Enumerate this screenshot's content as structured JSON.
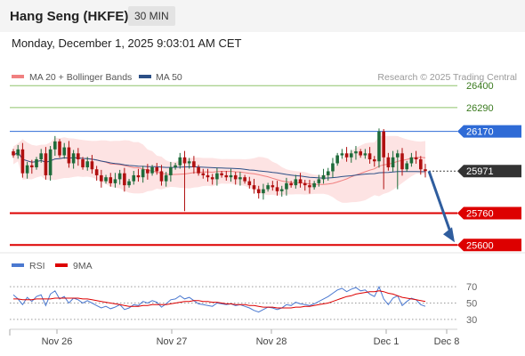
{
  "header": {
    "title": "Hang Seng (HKFE)",
    "timeframe": "30 MIN",
    "datetime": "Monday, December 1, 2025 9:03:01 AM CET"
  },
  "colors": {
    "bollinger": "#f08080",
    "band_fill": "#fde3e3",
    "ma50": "#2c4f86",
    "resistance_green": "#8fc46a",
    "level_blue": "#2f6bd6",
    "support_red": "#dd0000",
    "arrow": "#2f5d9e",
    "bull": "#1e6b3a",
    "bear": "#b01010",
    "rsi": "#4a78d0",
    "rsi_ma": "#dd0000"
  },
  "chart_data": [
    {
      "type": "candlestick",
      "legend": [
        {
          "name": "MA 20 + Bollinger Bands",
          "color": "#f08080"
        },
        {
          "name": "MA 50",
          "color": "#2c4f86"
        }
      ],
      "legend_placement": "top-left",
      "watermark": "Research © 2025 Trading Central",
      "ylim": [
        25570,
        26450
      ],
      "levels": [
        {
          "value": 26400,
          "label": "26400",
          "kind": "resistance-green"
        },
        {
          "value": 26290,
          "label": "26290",
          "kind": "resistance-green"
        },
        {
          "value": 26170,
          "label": "26170",
          "kind": "pivot-blue"
        },
        {
          "value": 25971,
          "label": "25971",
          "kind": "last-price"
        },
        {
          "value": 25760,
          "label": "25760",
          "kind": "support-red"
        },
        {
          "value": 25600,
          "label": "25600",
          "kind": "support-red"
        }
      ],
      "x_ticks": [
        "Nov 26",
        "Nov 27",
        "Nov 28",
        "Dec 1",
        "Dec 8"
      ],
      "last_price": 25971,
      "forecast_target": 25600,
      "close_path": [
        26050,
        26080,
        25960,
        26000,
        25990,
        26030,
        26060,
        25950,
        26080,
        26120,
        26050,
        26090,
        26010,
        26060,
        26030,
        25990,
        26020,
        25980,
        25950,
        25920,
        25940,
        25910,
        25930,
        25960,
        25900,
        25920,
        25950,
        25940,
        25980,
        25960,
        25990,
        25970,
        25920,
        25950,
        25990,
        26000,
        26040,
        26010,
        26020,
        25990,
        25960,
        25950,
        25940,
        25930,
        25960,
        25950,
        25940,
        25950,
        25930,
        25940,
        25920,
        25900,
        25880,
        25860,
        25880,
        25900,
        25890,
        25870,
        25880,
        25910,
        25900,
        25930,
        25910,
        25900,
        25890,
        25910,
        25930,
        25950,
        25970,
        26010,
        26050,
        26060,
        26040,
        26060,
        26070,
        26050,
        26060,
        26030,
        26020,
        26170,
        26040,
        25990,
        26040,
        26060,
        25980,
        26010,
        26040,
        26030,
        25980,
        25971
      ]
    },
    {
      "type": "line",
      "legend": [
        {
          "name": "RSI",
          "color": "#4a78d0"
        },
        {
          "name": "9MA",
          "color": "#dd0000"
        }
      ],
      "legend_placement": "top-left",
      "ylim": [
        20,
        80
      ],
      "y_ticks": [
        70,
        50,
        30
      ],
      "reference_lines": [
        70,
        50,
        30
      ],
      "rsi": [
        60,
        55,
        48,
        57,
        52,
        58,
        60,
        47,
        61,
        65,
        55,
        58,
        50,
        56,
        54,
        50,
        53,
        50,
        47,
        44,
        46,
        43,
        45,
        48,
        42,
        44,
        48,
        47,
        52,
        50,
        53,
        51,
        45,
        49,
        54,
        55,
        59,
        55,
        57,
        53,
        49,
        48,
        47,
        46,
        50,
        49,
        48,
        49,
        47,
        48,
        46,
        44,
        41,
        39,
        42,
        45,
        44,
        42,
        44,
        48,
        47,
        51,
        49,
        48,
        47,
        49,
        52,
        55,
        58,
        62,
        66,
        68,
        64,
        67,
        69,
        65,
        66,
        61,
        58,
        70,
        55,
        48,
        56,
        59,
        47,
        52,
        56,
        54,
        48,
        46
      ],
      "rsi_ma": [
        55,
        55,
        54,
        54,
        54,
        55,
        55,
        55,
        55,
        56,
        56,
        56,
        56,
        56,
        56,
        55,
        55,
        54,
        53,
        52,
        51,
        50,
        49,
        48,
        47,
        46,
        46,
        46,
        47,
        47,
        48,
        48,
        48,
        48,
        49,
        50,
        51,
        52,
        52,
        53,
        53,
        52,
        52,
        51,
        51,
        50,
        49,
        49,
        48,
        48,
        48,
        47,
        47,
        46,
        45,
        45,
        45,
        44,
        44,
        44,
        44,
        45,
        45,
        46,
        46,
        47,
        48,
        49,
        50,
        52,
        54,
        56,
        58,
        59,
        61,
        62,
        63,
        64,
        64,
        65,
        64,
        62,
        61,
        59,
        57,
        56,
        55,
        54,
        53,
        52
      ]
    }
  ]
}
